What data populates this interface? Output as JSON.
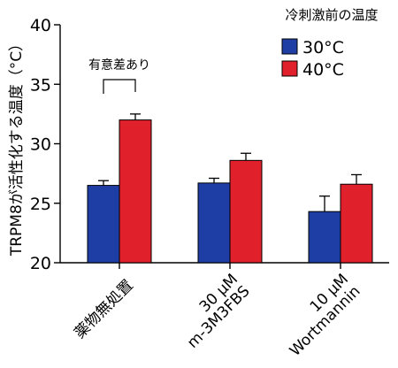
{
  "chart_data": {
    "type": "bar",
    "ylabel": "TRPM8が活性化する温度（°C）",
    "ylim": [
      20,
      40
    ],
    "yticks": [
      "20",
      "25",
      "30",
      "35",
      "40"
    ],
    "grid": false,
    "legend": {
      "title": "冷刺激前の温度",
      "placement": "top-right"
    },
    "categories": [
      {
        "lines": [
          "薬物無処置"
        ]
      },
      {
        "lines": [
          "30 μM",
          "m-3M3FBS"
        ]
      },
      {
        "lines": [
          "10 μM",
          "Wortmannin"
        ]
      }
    ],
    "series": [
      {
        "name": "30°C",
        "color": "#1f3ea5",
        "values": [
          26.5,
          26.7,
          24.3
        ],
        "errors": [
          0.4,
          0.4,
          1.3
        ]
      },
      {
        "name": "40°C",
        "color": "#e0202a",
        "values": [
          32.0,
          28.6,
          26.6
        ],
        "errors": [
          0.5,
          0.6,
          0.8
        ]
      }
    ],
    "annotations": [
      {
        "text": "有意差あり",
        "between": [
          0,
          0
        ]
      }
    ]
  }
}
